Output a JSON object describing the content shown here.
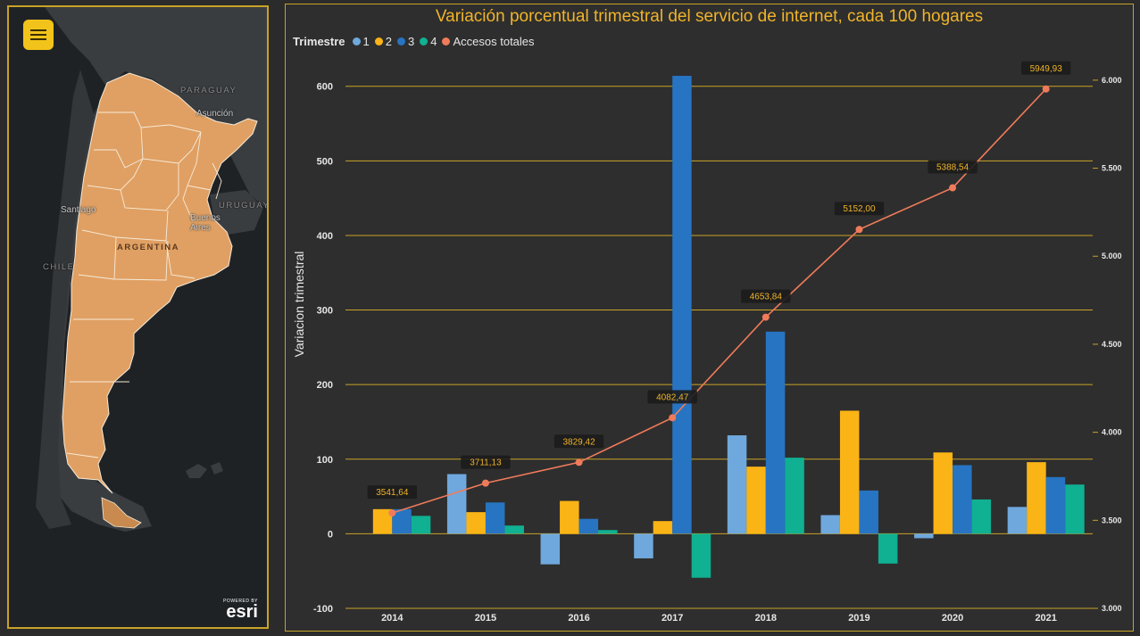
{
  "map": {
    "menu_icon": "hamburger-menu-icon",
    "labels": {
      "paraguay": "PARAGUAY",
      "asuncion": "Asunción",
      "uruguay": "URUGUAY",
      "santiago": "Santiago",
      "buenos_aires": "Buenos\nAires",
      "argentina": "ARGENTINA",
      "chile": "CHILE"
    },
    "attribution_powered": "POWERED BY",
    "attribution_brand": "esri",
    "colors": {
      "land": "#e0a063",
      "borders": "#f6ead8",
      "dark_land": "#3a3d40",
      "sea": "#1f2225"
    }
  },
  "chart": {
    "title": "Variación porcentual trimestral del servicio de internet, cada 100 hogares",
    "legend_title": "Trimestre",
    "legend": [
      {
        "label": "1",
        "color": "#6fa8dc"
      },
      {
        "label": "2",
        "color": "#fbb416"
      },
      {
        "label": "3",
        "color": "#2774c2"
      },
      {
        "label": "4",
        "color": "#10b092"
      },
      {
        "label": "Accesos totales",
        "color": "#f07b5a"
      }
    ],
    "ylabel": "Variacion trimestral"
  },
  "chart_data": {
    "type": "bar",
    "categories": [
      "2014",
      "2015",
      "2016",
      "2017",
      "2018",
      "2019",
      "2020",
      "2021"
    ],
    "series": [
      {
        "name": "1",
        "color": "#6fa8dc",
        "values": [
          null,
          80,
          -41,
          -33,
          132,
          25,
          -6,
          36
        ]
      },
      {
        "name": "2",
        "color": "#fbb416",
        "values": [
          33,
          29,
          44,
          17,
          90,
          165,
          109,
          96
        ]
      },
      {
        "name": "3",
        "color": "#2774c2",
        "values": [
          33,
          42,
          20,
          614,
          271,
          58,
          92,
          76
        ]
      },
      {
        "name": "4",
        "color": "#10b092",
        "values": [
          24,
          11,
          5,
          -59,
          102,
          -40,
          46,
          66
        ]
      }
    ],
    "line_series": {
      "name": "Accesos totales",
      "type": "line",
      "axis": "right",
      "color": "#f07b5a",
      "values": [
        3541.64,
        3711.13,
        3829.42,
        4082.47,
        4653.84,
        5152.0,
        5388.54,
        5949.93
      ],
      "labels": [
        "3541,64",
        "3711,13",
        "3829,42",
        "4082,47",
        "4653,84",
        "5152,00",
        "5388,54",
        "5949,93"
      ]
    },
    "ylim": [
      -100,
      620
    ],
    "yticks": [
      -100,
      0,
      100,
      200,
      300,
      400,
      500,
      600
    ],
    "y2lim": [
      3000,
      6050
    ],
    "y2ticks": [
      3000,
      3500,
      4000,
      4500,
      5000,
      5500,
      6000
    ],
    "y2ticklabels": [
      "3.000",
      "3.500",
      "4.000",
      "4.500",
      "5.000",
      "5.500",
      "6.000"
    ],
    "grid": true,
    "legend_position": "top-left",
    "ylabel": "Variacion trimestral",
    "xlabel": ""
  }
}
